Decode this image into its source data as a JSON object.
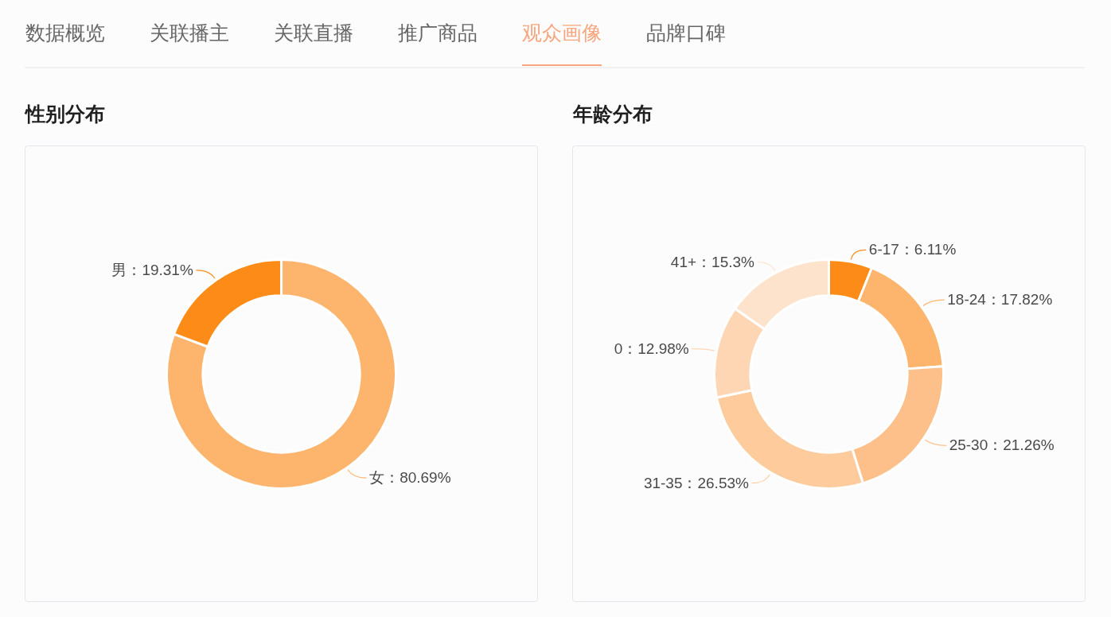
{
  "chart_data": [
    {
      "type": "other",
      "annotations": [
        "数据概览",
        "关联播主",
        "关联直播",
        "推广商品",
        "观众画像",
        "品牌口碑"
      ],
      "colors": [
        "#666666",
        "#666666",
        "#666666",
        "#666666",
        "#f7a57c",
        "#666666"
      ]
    },
    {
      "type": "donut",
      "title": "性别分布",
      "categories": [
        "女",
        "男"
      ],
      "values": [
        80.69,
        19.31
      ],
      "colors": [
        "#fdb46d",
        "#fc8c17"
      ],
      "value_labels": [
        "：80.69%",
        "：19.31%"
      ]
    },
    {
      "type": "donut",
      "title": "年龄分布",
      "categories": [
        "6-17",
        "18-24",
        "25-30",
        "31-35",
        "0",
        "41+"
      ],
      "values": [
        6.11,
        17.82,
        21.26,
        26.53,
        12.98,
        15.3
      ],
      "colors": [
        "#fc8c17",
        "#fdb46d",
        "#fdc08a",
        "#fecb9d",
        "#fed6b3",
        "#fee3cc"
      ],
      "value_labels": [
        "：6.11%",
        "：17.82%",
        "：21.26%",
        "：26.53%",
        "：12.98%",
        "：15.3%"
      ]
    }
  ]
}
